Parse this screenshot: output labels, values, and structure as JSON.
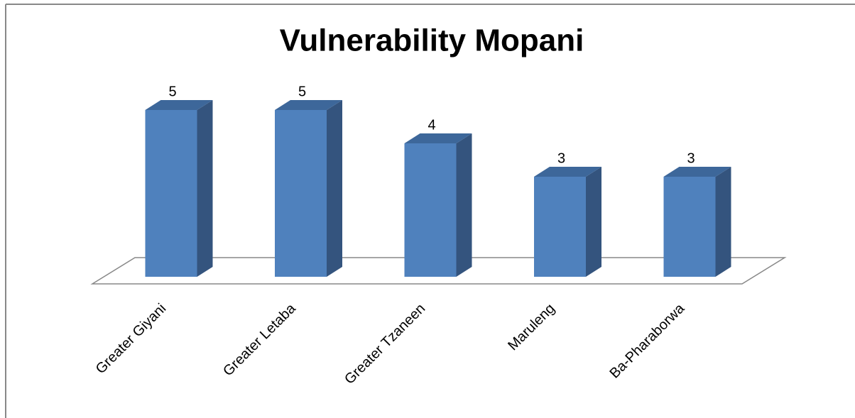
{
  "chart_data": {
    "type": "bar3d",
    "title": "Vulnerability Mopani",
    "categories": [
      "Greater Giyani",
      "Greater Letaba",
      "Greater Tzaneen",
      "Maruleng",
      "Ba-Pharaborwa"
    ],
    "values": [
      5,
      5,
      4,
      3,
      3
    ],
    "color": "#4f81bd",
    "ylim": [
      0,
      5
    ]
  }
}
